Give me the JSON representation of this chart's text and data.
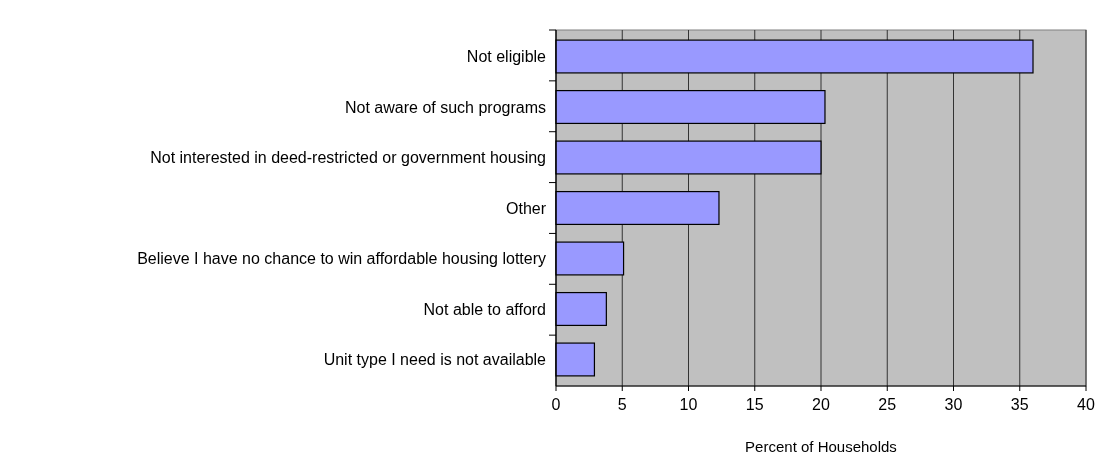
{
  "chart_data": {
    "type": "bar",
    "orientation": "horizontal",
    "xlabel": "Percent of Households",
    "categories": [
      "Not eligible",
      "Not aware of such programs",
      "Not interested in deed-restricted or government housing",
      "Other",
      "Believe I have no chance to win affordable housing lottery",
      "Not able to afford",
      "Unit type I need is not available"
    ],
    "values": [
      36.0,
      20.3,
      20.0,
      12.3,
      5.1,
      3.8,
      2.9
    ],
    "color": "#9999ff",
    "xlim": [
      0,
      40
    ],
    "xticks": [
      0,
      5,
      10,
      15,
      20,
      25,
      30,
      35,
      40
    ],
    "grid": "x"
  }
}
